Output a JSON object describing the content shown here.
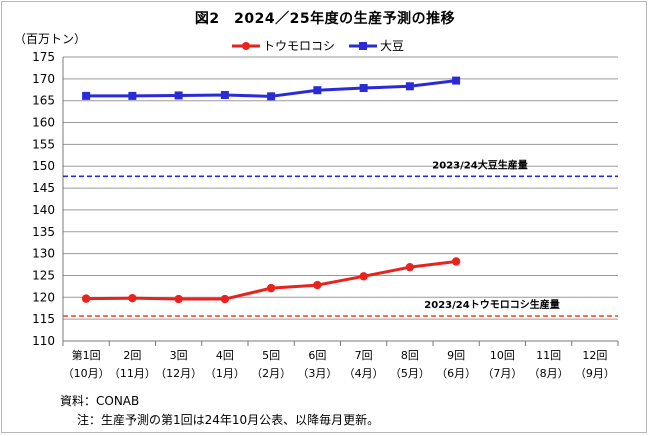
{
  "title": "図2　2024／25年度の生産予測の推移",
  "unit_label": "（百万トン）",
  "source": "資料：CONAB",
  "note": "注：生産予測の第1回は24年10月公表、以降毎月更新。",
  "chart_data": {
    "type": "line",
    "title": "図2　2024／25年度の生産予測の推移",
    "ylabel": "（百万トン）",
    "ylim": [
      110,
      175
    ],
    "yticks": [
      110,
      115,
      120,
      125,
      130,
      135,
      140,
      145,
      150,
      155,
      160,
      165,
      170,
      175
    ],
    "grid": true,
    "legend": "top-center",
    "categories": [
      [
        "第1回",
        "（10月）"
      ],
      [
        "2回",
        "（11月）"
      ],
      [
        "3回",
        "（12月）"
      ],
      [
        "4回",
        "（1月）"
      ],
      [
        "5回",
        "（2月）"
      ],
      [
        "6回",
        "（3月）"
      ],
      [
        "7回",
        "（4月）"
      ],
      [
        "8回",
        "（5月）"
      ],
      [
        "9回",
        "（6月）"
      ],
      [
        "10回",
        "（7月）"
      ],
      [
        "11回",
        "（8月）"
      ],
      [
        "12回",
        "（9月）"
      ]
    ],
    "series": [
      {
        "name": "トウモロコシ",
        "color": "#e8231d",
        "marker": "circle",
        "values": [
          119.7,
          119.8,
          119.6,
          119.6,
          122.1,
          122.8,
          124.8,
          126.9,
          128.2,
          null,
          null,
          null
        ]
      },
      {
        "name": "大豆",
        "color": "#2b2bd6",
        "marker": "square",
        "values": [
          166.1,
          166.1,
          166.2,
          166.3,
          166.0,
          167.4,
          167.9,
          168.3,
          169.6,
          null,
          null,
          null
        ]
      }
    ],
    "reference_lines": [
      {
        "label": "2023/24大豆生産量",
        "value": 147.7,
        "color": "#2b2bd6"
      },
      {
        "label": "2023/24トウモロコシ生産量",
        "value": 115.7,
        "color": "#e8562a"
      }
    ]
  }
}
